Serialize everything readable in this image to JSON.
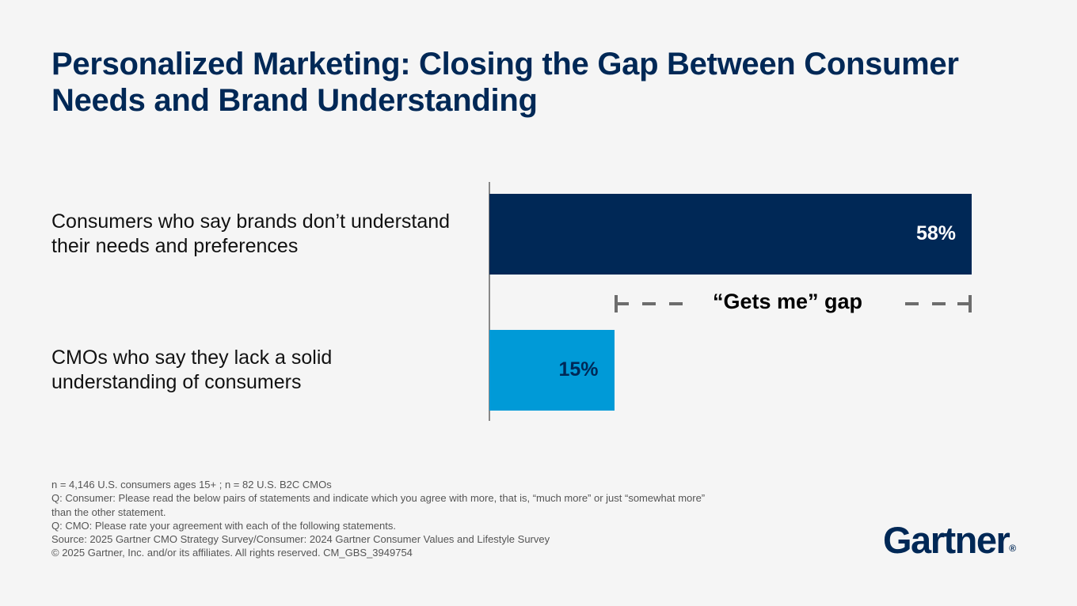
{
  "title": "Personalized Marketing: Closing the Gap Between Consumer Needs and Brand Understanding",
  "chart_data": {
    "type": "bar",
    "orientation": "horizontal",
    "categories": [
      "Consumers who say brands don’t understand their needs and preferences",
      "CMOs who say they lack a solid understanding of consumers"
    ],
    "values": [
      58,
      15
    ],
    "data_labels": [
      "58%",
      "15%"
    ],
    "colors": [
      "#002856",
      "#009ad7"
    ],
    "label_colors": [
      "#ffffff",
      "#002856"
    ],
    "xlim": [
      0,
      100
    ],
    "annotation": "“Gets me” gap"
  },
  "footnotes": [
    "n = 4,146 U.S. consumers ages 15+ ; n = 82 U.S. B2C CMOs",
    "Q: Consumer: Please read the below pairs of statements and indicate which you agree with more, that is, “much more” or just “somewhat more” than the other statement.",
    "Q: CMO: Please rate your agreement with each of the following statements.",
    "Source: 2025 Gartner CMO Strategy Survey/Consumer: 2024 Gartner Consumer Values and Lifestyle Survey",
    "© 2025 Gartner, Inc. and/or its affiliates. All rights reserved. CM_GBS_3949754"
  ],
  "logo": {
    "text": "Gartner",
    "mark": "®"
  }
}
